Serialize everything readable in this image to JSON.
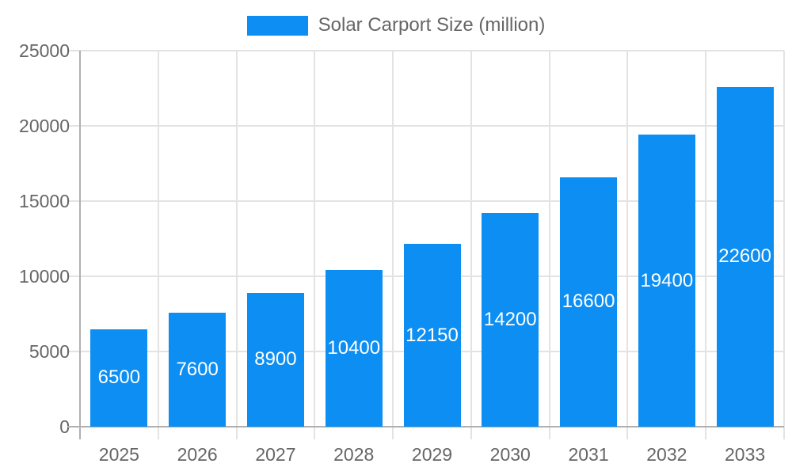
{
  "legend": {
    "label": "Solar Carport Size (million)"
  },
  "chart_data": {
    "type": "bar",
    "title": "Solar Carport Size (million)",
    "series_name": "Solar Carport Size (million)",
    "categories": [
      "2025",
      "2026",
      "2027",
      "2028",
      "2029",
      "2030",
      "2031",
      "2032",
      "2033"
    ],
    "values": [
      6500,
      7600,
      8900,
      10400,
      12150,
      14200,
      16600,
      19400,
      22600
    ],
    "xlabel": "",
    "ylabel": "",
    "ylim": [
      0,
      25000
    ],
    "ytick_step": 5000,
    "yticks": [
      0,
      5000,
      10000,
      15000,
      20000,
      25000
    ],
    "grid": true,
    "legend_position": "top",
    "bar_color": "#0d8ef2",
    "value_label_color": "#ffffff",
    "axis_text_color": "#666666",
    "gridline_color": "#e3e3e3",
    "axis_border_color": "#b0b0b0"
  }
}
